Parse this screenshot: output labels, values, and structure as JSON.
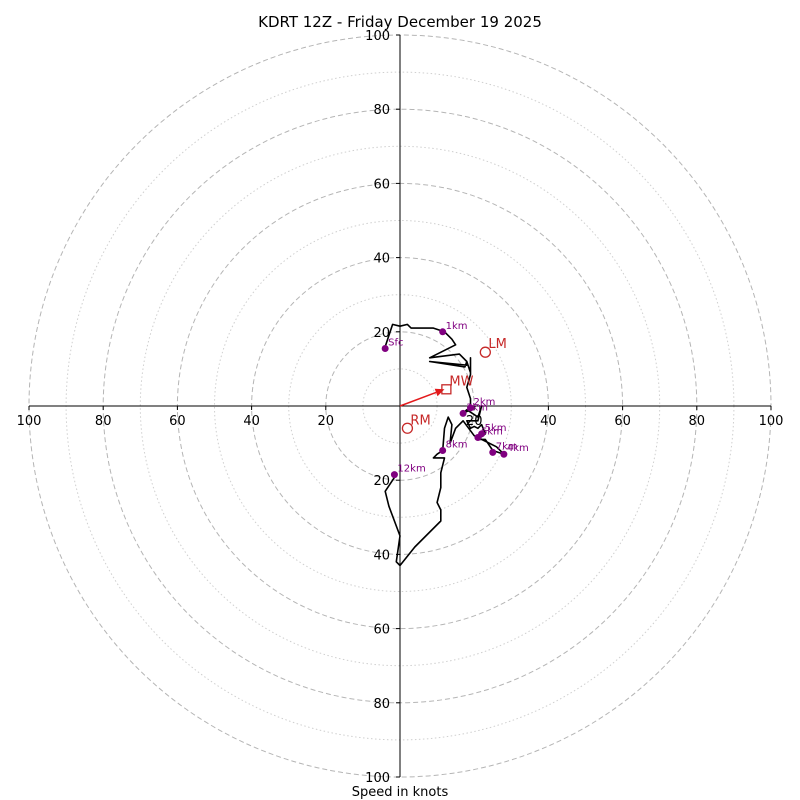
{
  "chart_data": {
    "type": "hodograph",
    "title": "KDRT 12Z - Friday December 19 2025",
    "xlabel": "Speed in knots",
    "units": "knots",
    "range": [
      -100,
      100
    ],
    "rings_major": [
      20,
      40,
      60,
      80,
      100
    ],
    "rings_minor": [
      10,
      30,
      50,
      70,
      90
    ],
    "x_tick_labels": [
      "100",
      "80",
      "60",
      "40",
      "20",
      "20",
      "40",
      "60",
      "80",
      "100"
    ],
    "x_tick_values": [
      -100,
      -80,
      -60,
      -40,
      -20,
      20,
      40,
      60,
      80,
      100
    ],
    "y_tick_labels": [
      "100",
      "80",
      "60",
      "40",
      "20",
      "20",
      "40",
      "60",
      "80",
      "100"
    ],
    "y_tick_values": [
      100,
      80,
      60,
      40,
      20,
      -20,
      -40,
      -60,
      -80,
      -100
    ],
    "hodograph_trace": [
      [
        -4,
        16
      ],
      [
        -2,
        22
      ],
      [
        0,
        21.5
      ],
      [
        2,
        22
      ],
      [
        3,
        21
      ],
      [
        5,
        21
      ],
      [
        9,
        21
      ],
      [
        12,
        20
      ],
      [
        14,
        18
      ],
      [
        15,
        16.5
      ],
      [
        8,
        13
      ],
      [
        16,
        14
      ],
      [
        18,
        12
      ],
      [
        17.5,
        10.5
      ],
      [
        8,
        12
      ],
      [
        18,
        11
      ],
      [
        18,
        12
      ],
      [
        19,
        9
      ],
      [
        19,
        13
      ],
      [
        19,
        8.5
      ],
      [
        18,
        5
      ],
      [
        19,
        2
      ],
      [
        19,
        -1
      ],
      [
        17,
        -2
      ],
      [
        18,
        -1
      ],
      [
        21,
        -3
      ],
      [
        22,
        0
      ],
      [
        21,
        -4
      ],
      [
        18,
        -4
      ],
      [
        19,
        -6
      ],
      [
        20,
        -5.5
      ],
      [
        21,
        -6
      ],
      [
        22,
        -5
      ],
      [
        23,
        -7.5
      ],
      [
        21,
        -9
      ],
      [
        23,
        -9
      ],
      [
        25,
        -12
      ],
      [
        28,
        -13
      ],
      [
        26,
        -11
      ],
      [
        22,
        -9
      ],
      [
        20,
        -8
      ],
      [
        17,
        -4
      ],
      [
        15,
        -6
      ],
      [
        13.5,
        -10
      ],
      [
        14,
        -5
      ],
      [
        13,
        -3
      ],
      [
        12,
        -6
      ],
      [
        11.5,
        -12
      ],
      [
        10,
        -13
      ],
      [
        9,
        -14
      ],
      [
        12,
        -14
      ],
      [
        11,
        -18
      ],
      [
        11,
        -22
      ],
      [
        10,
        -26
      ],
      [
        11,
        -28
      ],
      [
        11,
        -31
      ],
      [
        4,
        -38
      ],
      [
        0,
        -43
      ],
      [
        -1,
        -42
      ],
      [
        0,
        -35
      ],
      [
        -3,
        -27
      ],
      [
        -4,
        -23
      ],
      [
        -2,
        -20
      ],
      [
        -1,
        -18.5
      ]
    ],
    "height_points": [
      {
        "label": "Sfc",
        "u": -4,
        "v": 15.5
      },
      {
        "label": "1km",
        "u": 11.5,
        "v": 20
      },
      {
        "label": "2km",
        "u": 19,
        "v": -0.5
      },
      {
        "label": "3km",
        "u": 17,
        "v": -2
      },
      {
        "label": "4km",
        "u": 28,
        "v": -13
      },
      {
        "label": "5km",
        "u": 22,
        "v": -7.5
      },
      {
        "label": "6km",
        "u": 21,
        "v": -8.5
      },
      {
        "label": "7km",
        "u": 25,
        "v": -12.5
      },
      {
        "label": "8km",
        "u": 11.5,
        "v": -12
      },
      {
        "label": "12km",
        "u": -1.5,
        "v": -18.5
      }
    ],
    "storm_motions": [
      {
        "label": "LM",
        "u": 23,
        "v": 14.5,
        "marker": "circle"
      },
      {
        "label": "RM",
        "u": 2,
        "v": -6,
        "marker": "circle"
      },
      {
        "label": "MW",
        "u": 12.5,
        "v": 4.5,
        "marker": "square"
      }
    ],
    "shear_vector": {
      "u": 12,
      "v": 4.5
    }
  }
}
